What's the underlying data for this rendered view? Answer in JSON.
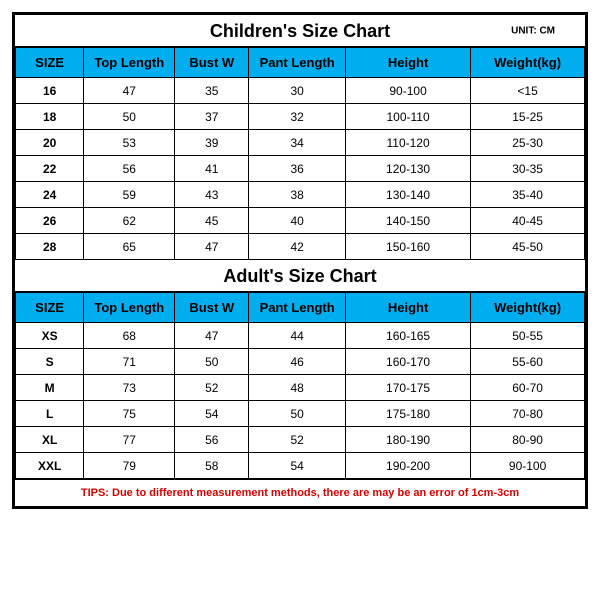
{
  "unit_label": "UNIT: CM",
  "children": {
    "title": "Children's Size Chart",
    "columns": [
      "SIZE",
      "Top Length",
      "Bust W",
      "Pant Length",
      "Height",
      "Weight(kg)"
    ],
    "rows": [
      [
        "16",
        "47",
        "35",
        "30",
        "90-100",
        "<15"
      ],
      [
        "18",
        "50",
        "37",
        "32",
        "100-110",
        "15-25"
      ],
      [
        "20",
        "53",
        "39",
        "34",
        "110-120",
        "25-30"
      ],
      [
        "22",
        "56",
        "41",
        "36",
        "120-130",
        "30-35"
      ],
      [
        "24",
        "59",
        "43",
        "38",
        "130-140",
        "35-40"
      ],
      [
        "26",
        "62",
        "45",
        "40",
        "140-150",
        "40-45"
      ],
      [
        "28",
        "65",
        "47",
        "42",
        "150-160",
        "45-50"
      ]
    ]
  },
  "adult": {
    "title": "Adult's Size Chart",
    "columns": [
      "SIZE",
      "Top Length",
      "Bust W",
      "Pant Length",
      "Height",
      "Weight(kg)"
    ],
    "rows": [
      [
        "XS",
        "68",
        "47",
        "44",
        "160-165",
        "50-55"
      ],
      [
        "S",
        "71",
        "50",
        "46",
        "160-170",
        "55-60"
      ],
      [
        "M",
        "73",
        "52",
        "48",
        "170-175",
        "60-70"
      ],
      [
        "L",
        "75",
        "54",
        "50",
        "175-180",
        "70-80"
      ],
      [
        "XL",
        "77",
        "56",
        "52",
        "180-190",
        "80-90"
      ],
      [
        "XXL",
        "79",
        "58",
        "54",
        "190-200",
        "90-100"
      ]
    ]
  },
  "tips": "TIPS: Due to different measurement methods, there are may be an error of 1cm-3cm",
  "colors": {
    "header_bg": "#00aeef",
    "border": "#000000",
    "tips_color": "#d40000"
  }
}
